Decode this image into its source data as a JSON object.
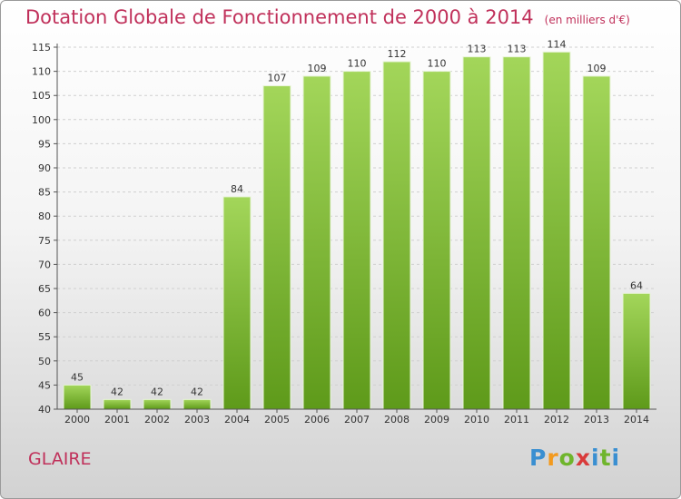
{
  "chart_data": {
    "type": "bar",
    "title": "Dotation Globale de Fonctionnement de 2000 à 2014",
    "subtitle": "(en milliers d'€)",
    "categories": [
      "2000",
      "2001",
      "2002",
      "2003",
      "2004",
      "2005",
      "2006",
      "2007",
      "2008",
      "2009",
      "2010",
      "2011",
      "2012",
      "2013",
      "2014"
    ],
    "values": [
      45,
      42,
      42,
      42,
      84,
      107,
      109,
      110,
      112,
      110,
      113,
      113,
      114,
      109,
      64
    ],
    "ylim": [
      40,
      115
    ],
    "yticks": [
      40,
      45,
      50,
      55,
      60,
      65,
      70,
      75,
      80,
      85,
      90,
      95,
      100,
      105,
      110,
      115
    ],
    "grid": true,
    "bar_color": "#7ab82e"
  },
  "footer": {
    "place": "GLAIRE",
    "logo_letters": [
      "P",
      "r",
      "o",
      "x",
      "i",
      "t",
      "i"
    ]
  },
  "colors": {
    "title": "#c0305a",
    "bar_top": "#a3d65a",
    "bar_bottom": "#5e9a1a"
  }
}
